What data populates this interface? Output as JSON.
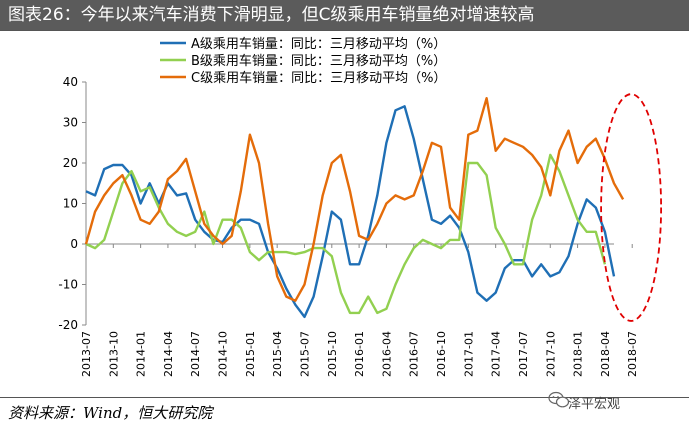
{
  "title": "图表26：今年以来汽车消费下滑明显，但C级乘用车销量绝对增速较高",
  "source": "资料来源：Wind，恒大研究院",
  "watermark": "泽平宏观",
  "colors": {
    "series_a": "#1f6fb5",
    "series_b": "#92d050",
    "series_c": "#e46c0a",
    "highlight": "#e00000",
    "title_bg": "#5b5b5b"
  },
  "chart_data": {
    "type": "line",
    "ylim": [
      -20,
      40
    ],
    "yticks": [
      -20,
      -10,
      0,
      10,
      20,
      30,
      40
    ],
    "x_tick_labels": [
      "2013-07",
      "2013-10",
      "2014-01",
      "2014-04",
      "2014-07",
      "2014-10",
      "2015-01",
      "2015-04",
      "2015-07",
      "2015-10",
      "2016-01",
      "2016-04",
      "2016-07",
      "2016-10",
      "2017-01",
      "2017-04",
      "2017-07",
      "2017-10",
      "2018-01",
      "2018-04",
      "2018-07"
    ],
    "x_start": "2013-07",
    "x_end": "2018-09",
    "legend_position": "top-center",
    "grid": false,
    "annotation": "red dashed ellipse highlighting 2018-03 to 2018-09",
    "series": [
      {
        "name": "A级乘用车销量：同比：三月移动平均（%）",
        "color": "#1f6fb5",
        "values": [
          13,
          12,
          18.5,
          19.5,
          19.5,
          17,
          10,
          15,
          10,
          15,
          12,
          12.5,
          6,
          3,
          1,
          0.5,
          4,
          6,
          6,
          5,
          -2,
          -6,
          -11,
          -15,
          -18,
          -13,
          -3,
          8,
          6,
          -5,
          -5,
          2,
          12,
          25,
          33,
          34,
          26,
          16,
          6,
          5,
          7,
          4,
          -2,
          -12,
          -14,
          -12,
          -6,
          -4,
          -4,
          -8,
          -5,
          -8,
          -7,
          -3,
          5,
          11,
          9,
          3,
          -8
        ]
      },
      {
        "name": "B级乘用车销量：同比：三月移动平均（%）",
        "color": "#92d050",
        "values": [
          0,
          -1,
          1,
          8,
          15,
          18,
          13,
          14,
          9,
          5,
          3,
          2,
          3,
          8,
          0,
          6,
          6,
          4,
          -2,
          -4,
          -2,
          -2,
          -2,
          -2.5,
          -2,
          -1,
          -1,
          -3,
          -12,
          -17,
          -17,
          -13,
          -17,
          -16,
          -10,
          -5,
          -1,
          1,
          0,
          -1,
          1,
          1,
          20,
          20,
          17,
          4,
          0,
          -5,
          -5,
          6,
          12,
          22,
          18,
          12,
          6,
          3,
          3,
          -5
        ]
      },
      {
        "name": "C级乘用车销量：同比：三月移动平均（%）",
        "color": "#e46c0a",
        "values": [
          0,
          8,
          12,
          15,
          17,
          12,
          6,
          5,
          8,
          16,
          18,
          21,
          13,
          5,
          2,
          0,
          2,
          13,
          27,
          20,
          5,
          -8,
          -13,
          -14,
          -10,
          0,
          12,
          20,
          22,
          13,
          2,
          1,
          5,
          10,
          12,
          11,
          12,
          18,
          25,
          24,
          9,
          6,
          27,
          28,
          36,
          23,
          26,
          25,
          24,
          22,
          19,
          12,
          23,
          28,
          20,
          24,
          26,
          21,
          15,
          11
        ]
      }
    ]
  }
}
